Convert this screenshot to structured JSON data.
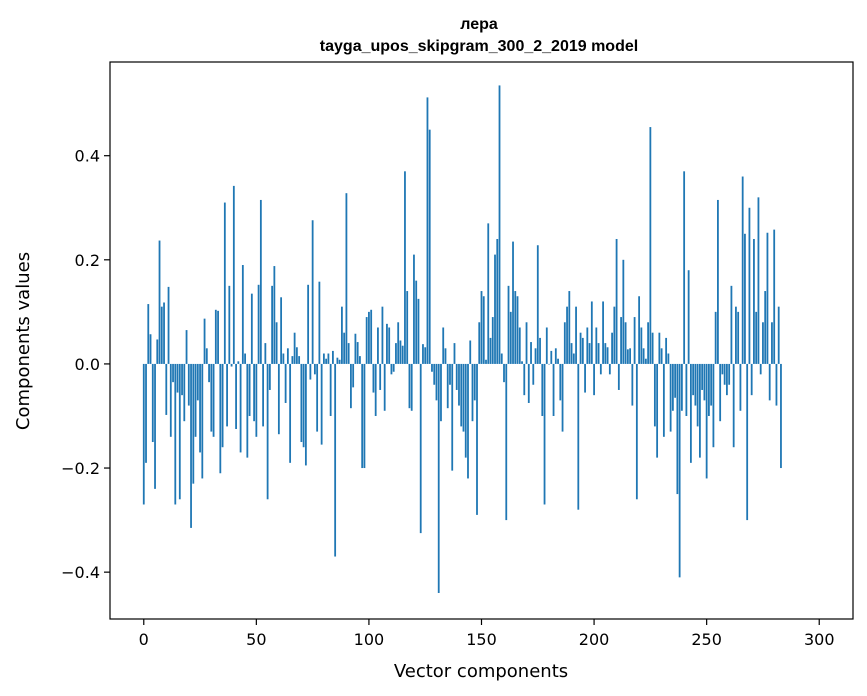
{
  "chart_data": {
    "type": "bar",
    "title": "лера",
    "subtitle": "tayga_upos_skipgram_300_2_2019 model",
    "xlabel": "Vector components",
    "ylabel": "Components values",
    "xlim": [
      -15,
      315
    ],
    "ylim": [
      -0.49,
      0.58
    ],
    "xticks": [
      0,
      50,
      100,
      150,
      200,
      250,
      300
    ],
    "xtick_labels": [
      "0",
      "50",
      "100",
      "150",
      "200",
      "250",
      "300"
    ],
    "yticks": [
      -0.4,
      -0.2,
      0.0,
      0.2,
      0.4
    ],
    "ytick_labels": [
      "−0.4",
      "−0.2",
      "0.0",
      "0.2",
      "0.4"
    ],
    "bar_color": "#1f77b4",
    "x": "0..299",
    "values": [
      -0.27,
      -0.19,
      0.115,
      0.057,
      -0.15,
      -0.24,
      0.047,
      0.237,
      0.11,
      0.118,
      -0.098,
      0.148,
      -0.14,
      -0.035,
      -0.27,
      -0.055,
      -0.26,
      -0.06,
      -0.11,
      0.065,
      -0.08,
      -0.315,
      -0.23,
      -0.14,
      -0.07,
      -0.17,
      -0.22,
      0.087,
      0.03,
      -0.035,
      -0.13,
      -0.14,
      0.104,
      0.102,
      -0.21,
      -0.16,
      0.31,
      -0.12,
      0.15,
      -0.005,
      0.342,
      -0.125,
      0.005,
      -0.17,
      0.19,
      0.02,
      -0.18,
      -0.1,
      0.135,
      -0.11,
      -0.14,
      0.152,
      0.315,
      -0.12,
      0.04,
      -0.26,
      -0.05,
      0.15,
      0.188,
      0.08,
      -0.135,
      0.128,
      0.02,
      -0.075,
      0.03,
      -0.19,
      0.015,
      0.06,
      0.032,
      0.015,
      -0.15,
      -0.16,
      -0.195,
      0.152,
      -0.03,
      0.276,
      -0.02,
      -0.13,
      0.158,
      -0.155,
      0.02,
      0.01,
      0.02,
      -0.1,
      0.025,
      -0.37,
      0.012,
      0.008,
      0.11,
      0.06,
      0.328,
      0.04,
      -0.085,
      -0.045,
      0.058,
      0.042,
      0.015,
      -0.2,
      -0.2,
      0.09,
      0.1,
      0.104,
      -0.055,
      -0.1,
      0.07,
      -0.05,
      0.11,
      -0.09,
      0.077,
      0.07,
      -0.02,
      -0.015,
      0.04,
      0.08,
      0.045,
      0.035,
      0.37,
      0.14,
      -0.085,
      -0.09,
      0.21,
      0.16,
      0.125,
      -0.325,
      0.038,
      0.032,
      0.512,
      0.45,
      -0.015,
      -0.04,
      -0.07,
      -0.44,
      -0.11,
      0.07,
      0.03,
      -0.085,
      -0.04,
      -0.205,
      0.04,
      -0.05,
      -0.08,
      -0.12,
      -0.13,
      -0.18,
      -0.22,
      0.045,
      -0.11,
      -0.07,
      -0.29,
      0.08,
      0.14,
      0.13,
      0.008,
      0.27,
      0.05,
      0.09,
      0.21,
      0.24,
      0.535,
      0.02,
      -0.035,
      -0.3,
      0.15,
      0.1,
      0.235,
      0.14,
      0.13,
      0.07,
      0.005,
      -0.06,
      0.08,
      -0.075,
      0.042,
      -0.04,
      0.03,
      0.228,
      0.05,
      -0.1,
      -0.27,
      0.07,
      0.0,
      0.025,
      -0.1,
      0.03,
      0.01,
      -0.07,
      -0.13,
      0.08,
      0.11,
      0.14,
      0.04,
      0.02,
      0.11,
      -0.28,
      0.06,
      0.05,
      -0.055,
      0.07,
      0.04,
      0.12,
      -0.06,
      0.07,
      0.04,
      -0.02,
      0.12,
      0.04,
      0.032,
      -0.02,
      0.06,
      0.11,
      0.24,
      -0.05,
      0.09,
      0.2,
      0.08,
      0.028,
      0.03,
      -0.08,
      0.09,
      -0.26,
      0.13,
      0.07,
      0.03,
      0.01,
      0.08,
      0.455,
      0.06,
      -0.12,
      -0.18,
      0.06,
      0.03,
      -0.14,
      0.05,
      0.02,
      -0.13,
      -0.09,
      -0.065,
      -0.25,
      -0.41,
      -0.09,
      0.37,
      -0.1,
      0.18,
      -0.19,
      -0.06,
      -0.08,
      -0.12,
      -0.18,
      -0.05,
      -0.07,
      -0.22,
      -0.1,
      -0.08,
      -0.16,
      0.1,
      0.315,
      -0.11,
      -0.02,
      -0.04,
      -0.06,
      -0.04,
      0.15,
      -0.16,
      0.11,
      0.1,
      -0.09,
      0.36,
      0.25,
      -0.3,
      0.3,
      -0.06,
      0.24,
      0.1,
      0.32,
      -0.02,
      0.08,
      0.14,
      0.252,
      -0.07,
      0.08,
      0.258,
      -0.08,
      0.11,
      -0.2
    ]
  }
}
